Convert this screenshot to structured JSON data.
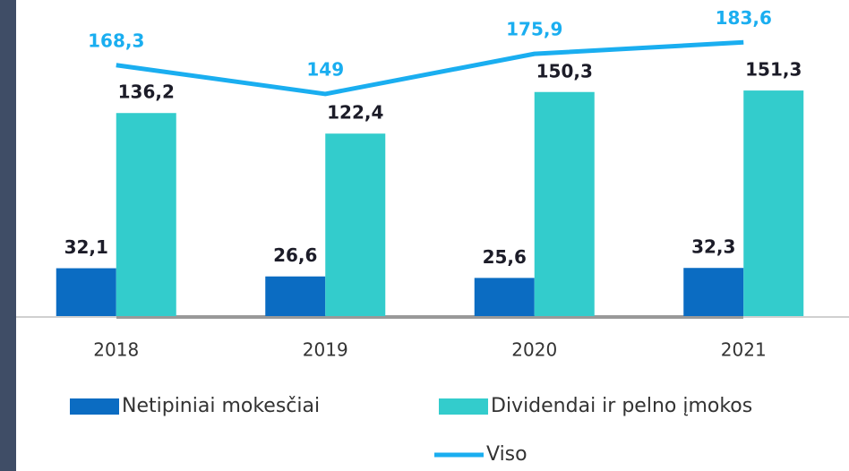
{
  "chart_data": {
    "type": "bar",
    "categories": [
      "2018",
      "2019",
      "2020",
      "2021"
    ],
    "series": [
      {
        "name": "Netipiniai mokesčiai",
        "color": "#0b6cc2",
        "type": "bar",
        "values": [
          32.1,
          26.6,
          25.6,
          32.3
        ],
        "value_labels": [
          "32,1",
          "26,6",
          "25,6",
          "32,3"
        ]
      },
      {
        "name": "Dividendai ir pelno įmokos",
        "color": "#33cccc",
        "type": "bar",
        "values": [
          136.2,
          122.4,
          150.3,
          151.3
        ],
        "value_labels": [
          "136,2",
          "122,4",
          "150,3",
          "151,3"
        ]
      },
      {
        "name": "Viso",
        "color": "#1aaef0",
        "type": "line",
        "values": [
          168.3,
          149,
          175.9,
          183.6
        ],
        "value_labels": [
          "168,3",
          "149",
          "175,9",
          "183,6"
        ]
      }
    ],
    "ylim": [
      0,
      200
    ]
  }
}
